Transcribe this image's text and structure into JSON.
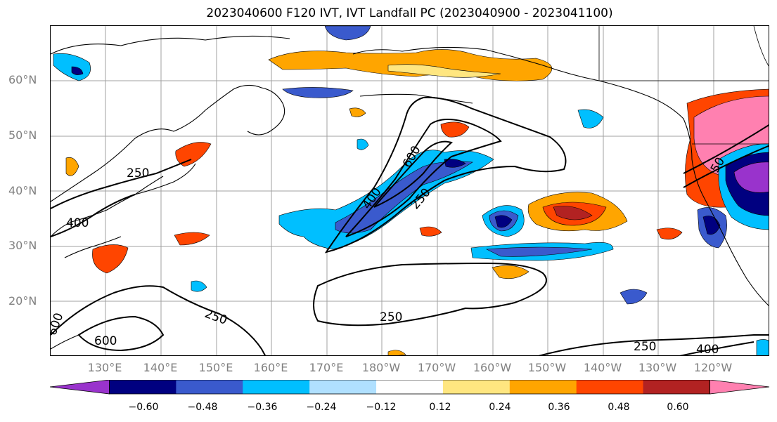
{
  "title": "2023040600 F120 IVT, IVT Landfall PC (2023040900 - 2023041100)",
  "lat_labels": [
    "60°N",
    "50°N",
    "40°N",
    "30°N",
    "20°N"
  ],
  "lon_labels": [
    "130°E",
    "140°E",
    "150°E",
    "160°E",
    "170°E",
    "180°W",
    "170°W",
    "160°W",
    "150°W",
    "140°W",
    "130°W",
    "120°W"
  ],
  "contour_labels": [
    "250",
    "400",
    "600",
    "250",
    "400",
    "600",
    "250",
    "250",
    "400",
    "250",
    "600",
    "250",
    "50"
  ],
  "colorbar": {
    "colors": [
      "#9933cc",
      "#000080",
      "#3a5acd",
      "#00bfff",
      "#b0e0ff",
      "#ffffff",
      "#ffe680",
      "#ffa500",
      "#ff4500",
      "#b22222",
      "#ff80b0"
    ],
    "tick_labels": [
      "−0.60",
      "−0.48",
      "−0.36",
      "−0.24",
      "−0.12",
      "0.12",
      "0.24",
      "0.36",
      "0.48",
      "0.60"
    ]
  }
}
